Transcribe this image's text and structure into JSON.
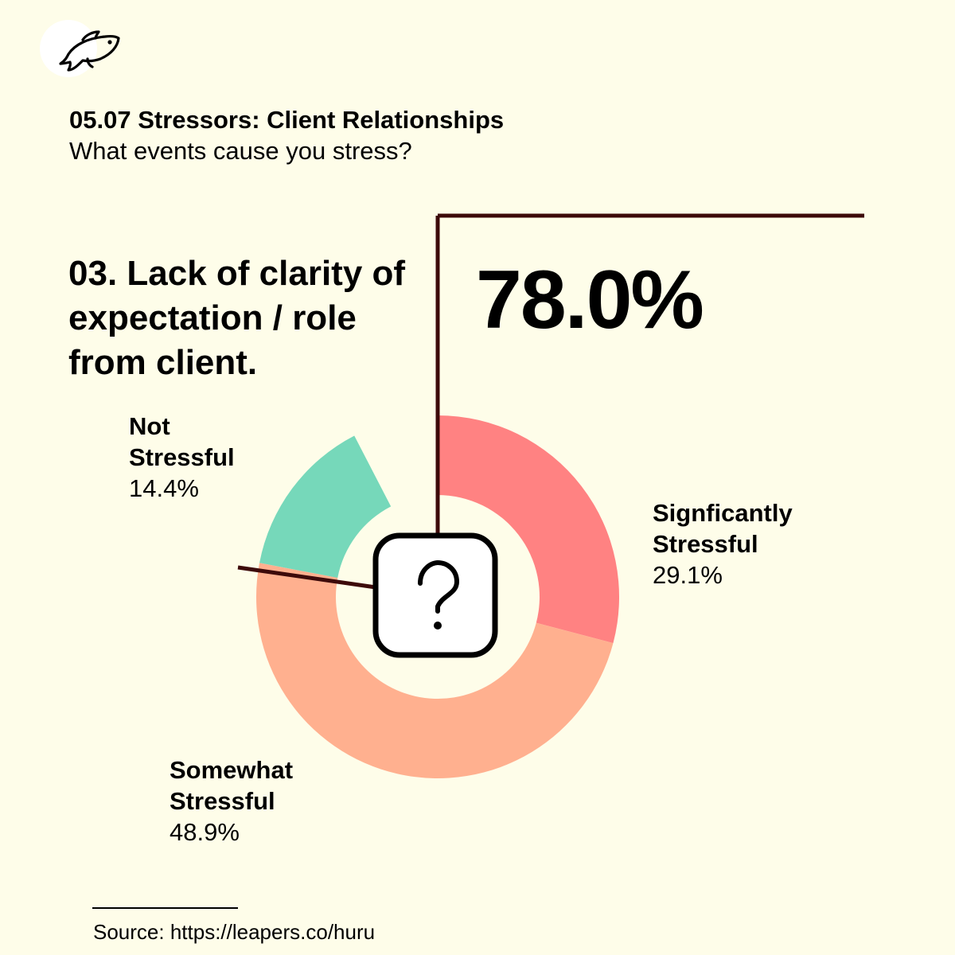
{
  "brand": {
    "logo_icon": "fish-icon"
  },
  "header": {
    "title": "05.07 Stressors: Client Relationships",
    "subtitle": "What events cause you stress?"
  },
  "question": {
    "title": "03. Lack of clarity of expectation / role from client.",
    "highlight_value": "78.0%"
  },
  "center_icon": "question-mark-icon",
  "chart_data": {
    "type": "pie",
    "title": "03. Lack of clarity of expectation / role from client.",
    "slices": [
      {
        "label": "Signficantly Stressful",
        "value": 29.1,
        "value_label": "29.1%",
        "color": "#FF8282"
      },
      {
        "label": "Somewhat Stressful",
        "value": 48.9,
        "value_label": "48.9%",
        "color": "#FFB08F"
      },
      {
        "label": "Not Stressful",
        "value": 14.4,
        "value_label": "14.4%",
        "color": "#76D8BA"
      }
    ],
    "unit": "%",
    "callout": {
      "value": 78.0,
      "label": "78.0%"
    },
    "legend": "none"
  },
  "colors": {
    "background": "#FEFDE9",
    "accent_line": "#3D0A0A",
    "significantly": "#FF8282",
    "somewhat": "#FFB08F",
    "not": "#76D8BA"
  },
  "labels": {
    "significantly_name": "Signficantly\nStressful",
    "significantly_pct": "29.1%",
    "somewhat_name": "Somewhat\nStressful",
    "somewhat_pct": "48.9%",
    "not_name": "Not\nStressful",
    "not_pct": "14.4%"
  },
  "footer": {
    "source": "Source: https://leapers.co/huru"
  }
}
